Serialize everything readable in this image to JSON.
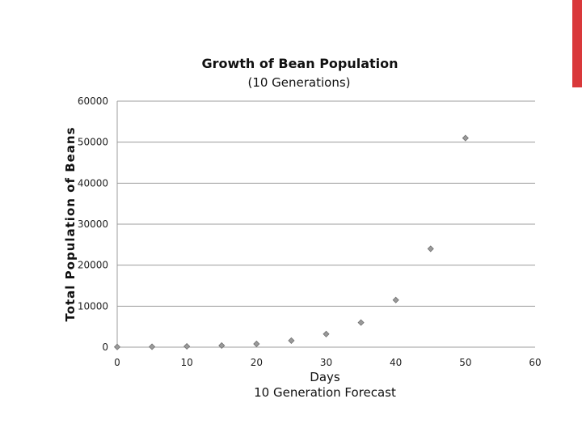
{
  "slide": {
    "accent_color": "#d9383a"
  },
  "chart_data": {
    "type": "scatter",
    "title": "Growth of Bean Population",
    "subtitle": "(10 Generations)",
    "xlabel": "Days",
    "xlabel_line2": "10 Generation Forecast",
    "ylabel": "Total Population of Beans",
    "xlim": [
      0,
      60
    ],
    "ylim": [
      0,
      60000
    ],
    "xticks": [
      0,
      10,
      20,
      30,
      40,
      50,
      60
    ],
    "yticks": [
      0,
      10000,
      20000,
      30000,
      40000,
      50000,
      60000
    ],
    "grid": true,
    "legend": "none",
    "marker": "diamond",
    "marker_color": "#9a9a9a",
    "series": [
      {
        "x": [
          0,
          5,
          10,
          15,
          20,
          25,
          30,
          35,
          40,
          45,
          50
        ],
        "y": [
          50,
          100,
          200,
          400,
          800,
          1600,
          3200,
          6000,
          11500,
          24000,
          51000
        ]
      }
    ]
  }
}
